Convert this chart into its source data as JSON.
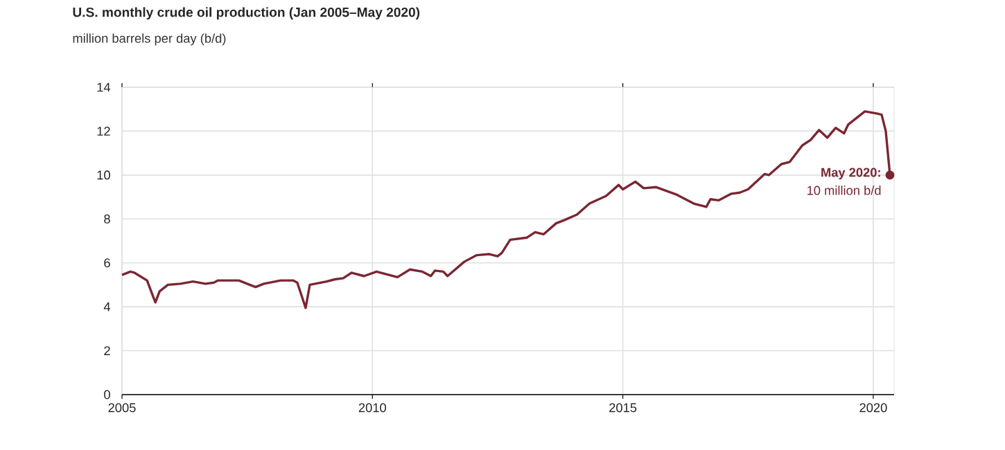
{
  "chart_data": {
    "type": "line",
    "title": "U.S. monthly crude oil production (Jan 2005–May 2020)",
    "subtitle": "million barrels per day (b/d)",
    "x": [
      "2005-01",
      "2005-03",
      "2005-04",
      "2005-07",
      "2005-09",
      "2005-10",
      "2005-12",
      "2006-03",
      "2006-06",
      "2006-09",
      "2006-11",
      "2006-12",
      "2007-05",
      "2007-09",
      "2007-11",
      "2008-03",
      "2008-06",
      "2008-07",
      "2008-09",
      "2008-10",
      "2009-02",
      "2009-04",
      "2009-06",
      "2009-08",
      "2009-11",
      "2010-02",
      "2010-07",
      "2010-10",
      "2011-01",
      "2011-03",
      "2011-04",
      "2011-06",
      "2011-07",
      "2011-11",
      "2012-02",
      "2012-05",
      "2012-07",
      "2012-08",
      "2012-10",
      "2013-02",
      "2013-04",
      "2013-06",
      "2013-09",
      "2013-11",
      "2014-02",
      "2014-05",
      "2014-09",
      "2014-12",
      "2015-01",
      "2015-04",
      "2015-06",
      "2015-09",
      "2016-02",
      "2016-06",
      "2016-09",
      "2016-10",
      "2016-12",
      "2017-03",
      "2017-05",
      "2017-07",
      "2017-11",
      "2017-12",
      "2018-03",
      "2018-05",
      "2018-08",
      "2018-10",
      "2018-12",
      "2019-02",
      "2019-04",
      "2019-06",
      "2019-07",
      "2019-11",
      "2020-02",
      "2020-03",
      "2020-04",
      "2020-05"
    ],
    "series": [
      {
        "color": "#7b2631",
        "values": [
          5.45,
          5.6,
          5.55,
          5.2,
          4.2,
          4.7,
          5.0,
          5.05,
          5.15,
          5.05,
          5.1,
          5.2,
          5.2,
          4.9,
          5.05,
          5.2,
          5.2,
          5.1,
          3.95,
          5.0,
          5.15,
          5.25,
          5.3,
          5.55,
          5.4,
          5.6,
          5.35,
          5.7,
          5.6,
          5.4,
          5.65,
          5.6,
          5.4,
          6.05,
          6.35,
          6.4,
          6.3,
          6.45,
          7.05,
          7.15,
          7.4,
          7.3,
          7.8,
          7.95,
          8.2,
          8.7,
          9.05,
          9.55,
          9.35,
          9.7,
          9.4,
          9.45,
          9.1,
          8.7,
          8.55,
          8.9,
          8.85,
          9.15,
          9.2,
          9.35,
          10.05,
          10.0,
          10.5,
          10.6,
          11.35,
          11.6,
          12.05,
          11.7,
          12.15,
          11.9,
          12.3,
          12.9,
          12.8,
          12.75,
          12.0,
          10.0
        ]
      }
    ],
    "xlim": [
      "2005-01",
      "2020-06"
    ],
    "xticks": [
      {
        "value": "2005-01",
        "label": "2005"
      },
      {
        "value": "2010-01",
        "label": "2010"
      },
      {
        "value": "2015-01",
        "label": "2015"
      },
      {
        "value": "2020-01",
        "label": "2020"
      }
    ],
    "ylim": [
      0,
      14
    ],
    "yticks": [
      0,
      2,
      4,
      6,
      8,
      10,
      12,
      14
    ],
    "grid": true,
    "marker": "none",
    "line_style": "solid",
    "annotations": [
      {
        "text": "May 2020:",
        "x": "2020-05",
        "y": 10
      },
      {
        "text": "10 million b/d",
        "x": "2020-05",
        "y": 10
      }
    ]
  }
}
